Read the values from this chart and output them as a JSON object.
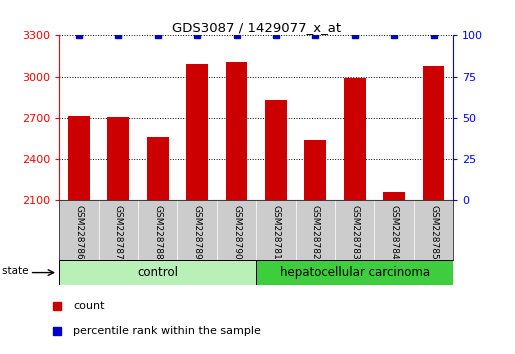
{
  "title": "GDS3087 / 1429077_x_at",
  "samples": [
    "GSM228786",
    "GSM228787",
    "GSM228788",
    "GSM228789",
    "GSM228790",
    "GSM228781",
    "GSM228782",
    "GSM228783",
    "GSM228784",
    "GSM228785"
  ],
  "counts": [
    2710,
    2705,
    2560,
    3090,
    3105,
    2830,
    2535,
    2990,
    2155,
    3080
  ],
  "percentiles": [
    100,
    100,
    100,
    100,
    100,
    100,
    100,
    100,
    100,
    100
  ],
  "control_color_light": "#b8f0b8",
  "control_color": "#90EE90",
  "carcinoma_color": "#3dcd3d",
  "bar_color": "#CC0000",
  "percentile_color": "#0000CC",
  "ylim_left": [
    2100,
    3300
  ],
  "ylim_right": [
    0,
    100
  ],
  "yticks_left": [
    2100,
    2400,
    2700,
    3000,
    3300
  ],
  "yticks_right": [
    0,
    25,
    50,
    75,
    100
  ],
  "tick_bg_color": "#cccccc",
  "background_color": "#ffffff"
}
